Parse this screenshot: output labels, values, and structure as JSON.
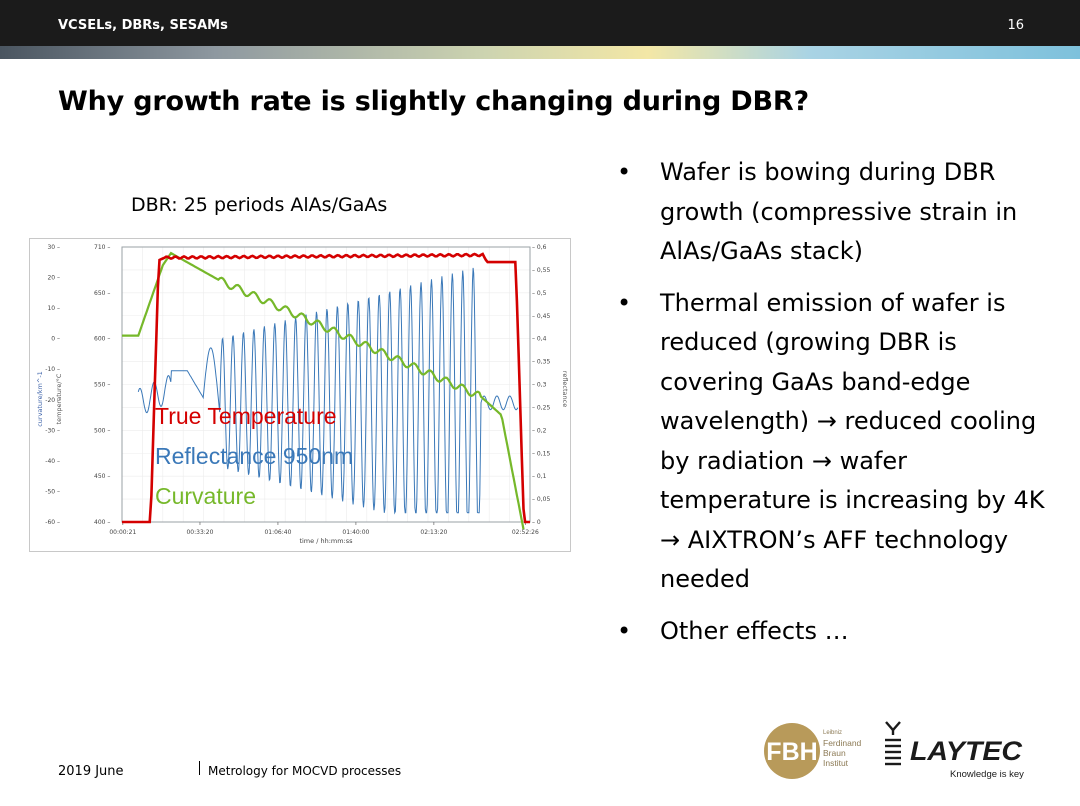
{
  "header": {
    "section": "VCSELs, DBRs, SESAMs",
    "page_number": "16"
  },
  "title": "Why growth rate is slightly changing during DBR?",
  "chart_caption": "DBR: 25 periods AlAs/GaAs",
  "chart_data": {
    "type": "line",
    "xlabel": "time / hh:mm:ss",
    "x_ticks": [
      "00:00:21",
      "00:33:20",
      "01:06:40",
      "01:40:00",
      "02:13:20",
      "02:52:26"
    ],
    "y_curvature_label": "curvature/km^-1",
    "y_curvature_ticks": [
      "30",
      "20",
      "10",
      "0",
      "-10",
      "-20",
      "-30",
      "-40",
      "-50",
      "-60"
    ],
    "y_temperature_label": "temperature/°C",
    "y_temperature_ticks": [
      "710",
      "650",
      "600",
      "550",
      "500",
      "450",
      "400"
    ],
    "y_reflectance_label": "reflectance",
    "y_reflectance_ticks": [
      "0,6",
      "0,55",
      "0,5",
      "0,45",
      "0,4",
      "0,35",
      "0,3",
      "0,25",
      "0,2",
      "0,15",
      "0,1",
      "0,05",
      "0"
    ],
    "series": [
      {
        "name": "True Temperature",
        "color": "#d40000"
      },
      {
        "name": "Reflectance  950nm",
        "color": "#3a78b8"
      },
      {
        "name": "Curvature",
        "color": "#76b82a"
      }
    ],
    "legend_placement": "lower-left inside plot",
    "grid": true
  },
  "bullets": [
    "Wafer is bowing during DBR growth (compressive strain in AlAs/GaAs stack)",
    "Thermal emission of wafer is reduced (growing DBR is covering GaAs band-edge wavelength) → reduced cooling by radiation → wafer temperature is increasing by 4K → AIXTRON’s AFF technology needed",
    "Other effects …"
  ],
  "footer": {
    "date": "2019 June",
    "text": "Metrology for MOCVD processes"
  },
  "logos": {
    "fbh_mark": "FBH",
    "fbh_small": "Leibniz",
    "fbh_lines": [
      "Ferdinand",
      "Braun",
      "Institut"
    ],
    "laytec_name": "LAYTEC",
    "laytec_slogan": "Knowledge is key"
  }
}
